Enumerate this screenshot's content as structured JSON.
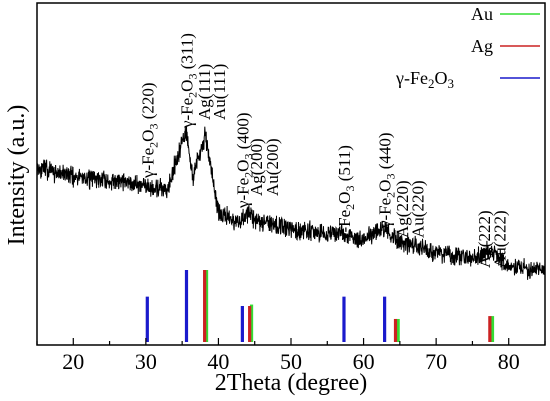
{
  "chart_data": {
    "type": "line",
    "xlabel": "2Theta (degree)",
    "ylabel": "Intensity (a.u.)",
    "xlim": [
      15,
      85
    ],
    "x_ticks": [
      "20",
      "30",
      "40",
      "50",
      "60",
      "70",
      "80"
    ],
    "y_ticks_labeled": false,
    "legend_position": "top-right",
    "series": [
      {
        "name": "",
        "color": "#000000",
        "x": [
          15,
          20,
          25,
          30,
          31,
          33,
          35.5,
          36.5,
          38.2,
          40,
          42,
          43.5,
          44.3,
          45,
          50,
          55,
          57.3,
          60,
          62.9,
          64.5,
          70,
          75,
          77.4,
          80,
          85
        ],
        "y": [
          0.77,
          0.72,
          0.69,
          0.67,
          0.63,
          0.65,
          1.0,
          0.72,
          0.97,
          0.5,
          0.45,
          0.46,
          0.52,
          0.45,
          0.4,
          0.37,
          0.38,
          0.33,
          0.41,
          0.33,
          0.26,
          0.22,
          0.28,
          0.17,
          0.15
        ]
      }
    ],
    "reference_patterns": [
      {
        "name": "Au",
        "color": "#33dd33",
        "positions": [
          38.2,
          44.4,
          64.6,
          77.6
        ],
        "intensities": [
          1.0,
          0.52,
          0.32,
          0.36
        ]
      },
      {
        "name": "Ag",
        "color": "#cc2222",
        "positions": [
          38.1,
          44.3,
          64.4,
          77.4
        ],
        "intensities": [
          1.0,
          0.5,
          0.32,
          0.36
        ]
      },
      {
        "name": "γ-Fe2O3",
        "color": "#1a1acc",
        "positions": [
          30.2,
          35.6,
          43.3,
          57.3,
          62.9
        ],
        "intensities": [
          0.63,
          1.0,
          0.5,
          0.63,
          0.63
        ]
      }
    ],
    "legend": {
      "au": "Au",
      "ag": "Ag",
      "fe": "γ-Fe",
      "fe_sub1": "2",
      "fe_mid": "O",
      "fe_sub2": "3"
    },
    "annotations": [
      {
        "pre": "γ-Fe",
        "s1": "2",
        "mid": "O",
        "s2": "3",
        "post": " (220)",
        "x": 30.2
      },
      {
        "pre": "γ-Fe",
        "s1": "2",
        "mid": "O",
        "s2": "3",
        "post": " (311)",
        "x": 35.6
      },
      {
        "pre": "Ag(111)",
        "s1": "",
        "mid": "",
        "s2": "",
        "post": "",
        "x": 38.0
      },
      {
        "pre": "Au(111)",
        "s1": "",
        "mid": "",
        "s2": "",
        "post": "",
        "x": 40.1
      },
      {
        "pre": "γ-Fe",
        "s1": "2",
        "mid": "O",
        "s2": "3",
        "post": " (400)",
        "x": 43.3
      },
      {
        "pre": "Ag(200)",
        "s1": "",
        "mid": "",
        "s2": "",
        "post": "",
        "x": 45.2
      },
      {
        "pre": "Au(200)",
        "s1": "",
        "mid": "",
        "s2": "",
        "post": "",
        "x": 47.4
      },
      {
        "pre": "γ-Fe",
        "s1": "2",
        "mid": "O",
        "s2": "3",
        "post": " (511)",
        "x": 57.3
      },
      {
        "pre": "γ-Fe",
        "s1": "2",
        "mid": "O",
        "s2": "3",
        "post": " (440)",
        "x": 62.9
      },
      {
        "pre": "Ag(220)",
        "s1": "",
        "mid": "",
        "s2": "",
        "post": "",
        "x": 65.3
      },
      {
        "pre": "Au(220)",
        "s1": "",
        "mid": "",
        "s2": "",
        "post": "",
        "x": 67.4
      },
      {
        "pre": "Ag(222)",
        "s1": "",
        "mid": "",
        "s2": "",
        "post": "",
        "x": 76.6
      },
      {
        "pre": "Au(222)",
        "s1": "",
        "mid": "",
        "s2": "",
        "post": "",
        "x": 78.7
      }
    ]
  }
}
